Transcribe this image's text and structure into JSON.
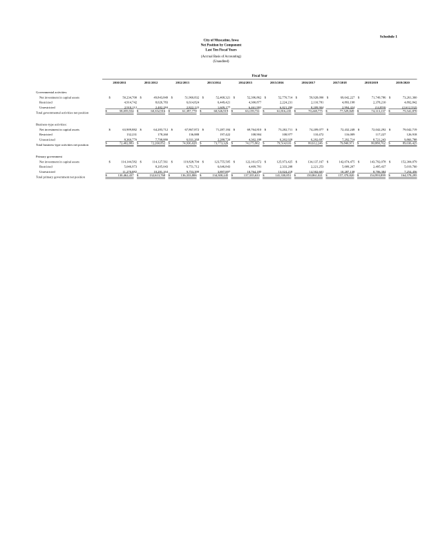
{
  "page": {
    "schedule_label": "Schedule 1",
    "title_lines": [
      "City of Muscatine, Iowa",
      "Net Position by Component",
      "Last Ten Fiscal Years",
      "(Accrual Basis of Accounting)",
      "(Unaudited)"
    ],
    "fiscal_year_header": "Fiscal Year"
  },
  "table": {
    "years": [
      "2010/2011",
      "2011/2012",
      "2012/2013",
      "2013/2014",
      "2014/2015",
      "2015/2016",
      "2016/2017",
      "2017/2018",
      "2018/2019",
      "2019/2020"
    ],
    "sections": [
      {
        "header": "Governmental activities:",
        "rows": [
          {
            "label": "Net investment in capital assets",
            "dollar": true,
            "values": [
              "50,234,700",
              "49,843,849",
              "51,960,832",
              "52,468,321",
              "52,396,862",
              "52,770,714",
              "59,928,090",
              "69,642,227",
              "71,749,786",
              "73,261,360"
            ]
          },
          {
            "label": "Restricted",
            "dollar": false,
            "values": [
              "4,914,742",
              "8,026,783",
              "6,614,824",
              "6,449,421",
              "4,300,877",
              "2,224,231",
              "2,110,781",
              "4,893,198",
              "2,378,210",
              "4,892,842"
            ]
          },
          {
            "label": "Unrestricted",
            "dollar": false,
            "values": [
              "2,910,112",
              "2,482,284",
              "2,822,122",
              "1,609,177",
              "6,461,992",
              "6,821,290",
              "8,209,904",
              "2,994,424",
              "(14,859)",
              "(2,612,332)"
            ]
          }
        ],
        "total": {
          "label": "Total governmental activities net position",
          "dollar": true,
          "values": [
            "58,059,554",
            "60,352,916",
            "61,397,778",
            "60,526,919",
            "63,159,731",
            "61,816,235",
            "70,248,775",
            "77,529,849",
            "74,113,137",
            "75,541,870"
          ]
        }
      },
      {
        "header": "Business-type activities:",
        "rows": [
          {
            "label": "Net investment in capital assets",
            "dollar": true,
            "values": [
              "63,909,882",
              "64,283,712",
              "67,867,872",
              "71,287,184",
              "69,764,810",
              "73,202,711",
              "74,209,077",
              "72,432,248",
              "72,042,292",
              "79,042,719"
            ]
          },
          {
            "label": "Restricted",
            "dollar": false,
            "values": [
              "132,231",
              "178,260",
              "136,888",
              "197,422",
              "108,904",
              "108,977",
              "110,472",
              "116,009",
              "117,227",
              "126,918"
            ]
          },
          {
            "label": "Unrestricted",
            "dollar": false,
            "values": [
              "8,360,770",
              "7,798,880",
              "6,931,268",
              "2,288,720",
              "4,302,188",
              "6,202,928",
              "6,292,697",
              "7,292,714",
              "8,721,243",
              "9,866,788"
            ]
          }
        ],
        "total": {
          "label": "Total business-type activities net position",
          "dollar": true,
          "values": [
            "72,402,883",
            "72,260,852",
            "74,936,028",
            "73,773,326",
            "74,175,902",
            "79,514,616",
            "80,612,246",
            "79,840,971",
            "80,880,762",
            "89,036,425"
          ]
        }
      },
      {
        "header": "Primary government",
        "rows": [
          {
            "label": "Net investment in capital assets",
            "dollar": true,
            "values": [
              "114,144,582",
              "114,127,561",
              "119,828,704",
              "123,755,505",
              "122,161,672",
              "125,973,425",
              "134,137,167",
              "142,074,475",
              "143,792,078",
              "152,304,079"
            ]
          },
          {
            "label": "Restricted",
            "dollar": false,
            "values": [
              "5,046,973",
              "8,205,043",
              "6,751,712",
              "6,646,843",
              "4,409,781",
              "2,333,208",
              "2,221,253",
              "5,009,207",
              "2,495,437",
              "5,019,760"
            ]
          },
          {
            "label": "Unrestricted",
            "dollar": false,
            "values": [
              "11,270,882",
              "10,281,164",
              "9,753,390",
              "3,897,897",
              "10,764,180",
              "13,024,218",
              "14,502,601",
              "10,287,138",
              "8,706,384",
              "7,254,456"
            ]
          }
        ],
        "total": {
          "label": "Total primary government net position",
          "dollar": true,
          "values": [
            "130,462,437",
            "132,613,768",
            "136,333,806",
            "134,300,245",
            "137,335,633",
            "141,330,851",
            "150,861,021",
            "157,370,820",
            "154,993,899",
            "164,578,295"
          ]
        }
      }
    ]
  }
}
